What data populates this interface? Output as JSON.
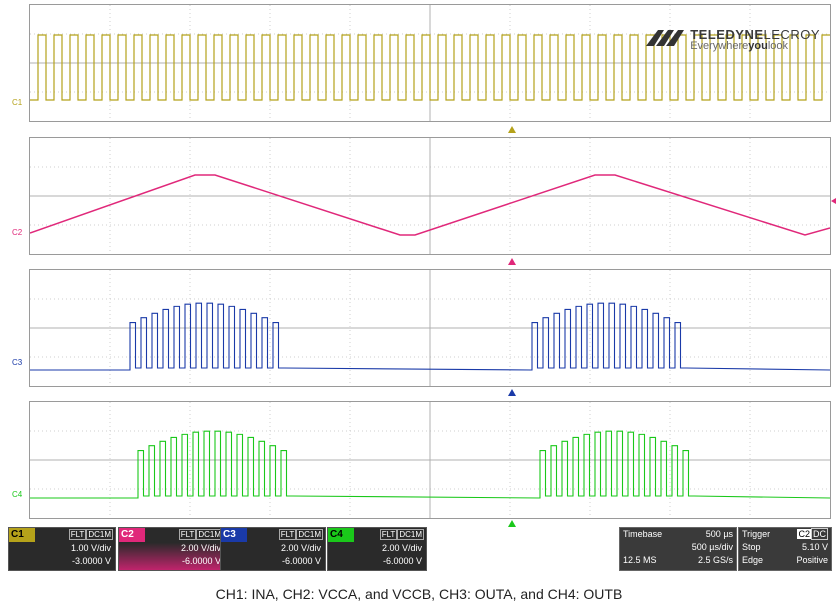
{
  "brand": {
    "name_bold": "TELEDYNE",
    "name_light": "LECROY",
    "tagline_pre": "Everywhere",
    "tagline_bold": "you",
    "tagline_post": "look"
  },
  "channels": [
    {
      "id": "C1",
      "color": "#b5a21a",
      "coupling_a": "FLT",
      "coupling_b": "DC1M",
      "vdiv": "1.00 V/div",
      "offset": "-3.0000 V"
    },
    {
      "id": "C2",
      "color": "#e0287a",
      "coupling_a": "FLT",
      "coupling_b": "DC1M",
      "vdiv": "2.00 V/div",
      "offset": "-6.0000 V"
    },
    {
      "id": "C3",
      "color": "#1a3aa8",
      "coupling_a": "FLT",
      "coupling_b": "DC1M",
      "vdiv": "2.00 V/div",
      "offset": "-6.0000 V"
    },
    {
      "id": "C4",
      "color": "#1ac81a",
      "coupling_a": "FLT",
      "coupling_b": "DC1M",
      "vdiv": "2.00 V/div",
      "offset": "-6.0000 V"
    }
  ],
  "timebase": {
    "label": "Timebase",
    "value": "500 µs",
    "per_div": "500 µs/div",
    "samples": "12.5 MS",
    "rate": "2.5 GS/s"
  },
  "trigger": {
    "label": "Trigger",
    "source": "C2",
    "coupling": "DC",
    "mode": "Stop",
    "level": "5.10 V",
    "type": "Edge",
    "slope": "Positive"
  },
  "caption": "CH1: INA, CH2: VCCA, and VCCB, CH3: OUTA, and CH4: OUTB"
}
